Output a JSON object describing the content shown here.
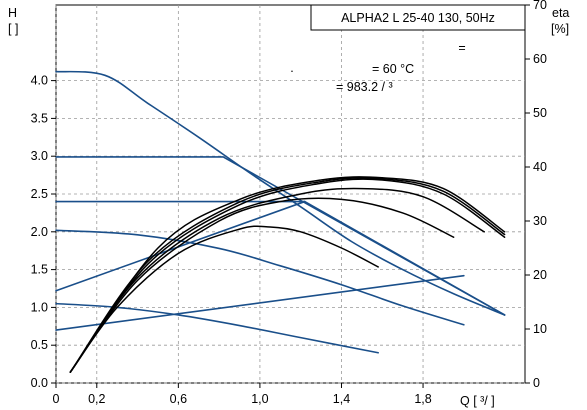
{
  "chart_data": {
    "type": "line",
    "title": "ALPHA2 L 25-40 130, 50Hz",
    "annotations": {
      "line1": "=",
      "line2": ".",
      "line3": "= 60 °C",
      "line4": "= 983.2   / ³"
    },
    "y_left_label": {
      "line1": "H",
      "line2": "[  ]"
    },
    "y_right_label": {
      "line1": "eta",
      "line2": "[%]"
    },
    "x_label": "Q [  ³/  ]",
    "x_ticks": [
      "0",
      "0,2",
      "0,6",
      "1,0",
      "1,4",
      "1,8"
    ],
    "x_tick_values": [
      0,
      0.2,
      0.6,
      1.0,
      1.4,
      1.8
    ],
    "y_left_ticks": [
      "0.0",
      "0.5",
      "1.0",
      "1.5",
      "2.0",
      "2.5",
      "3.0",
      "3.5",
      "4.0"
    ],
    "y_left_tick_values": [
      0,
      0.5,
      1.0,
      1.5,
      2.0,
      2.5,
      3.0,
      3.5,
      4.0
    ],
    "y_right_ticks": [
      "0",
      "10",
      "20",
      "30",
      "40",
      "50",
      "60",
      "70"
    ],
    "y_right_tick_values": [
      0,
      10,
      20,
      30,
      40,
      50,
      60,
      70
    ],
    "xlim": [
      0,
      2.3
    ],
    "ylim_left": [
      0,
      5.0
    ],
    "ylim_right": [
      0,
      70
    ],
    "grid": true,
    "colors": {
      "head": "#1a4f8a",
      "efficiency": "#000000",
      "grid": "#9a9a9a"
    },
    "series": [
      {
        "axis": "left",
        "kind": "head",
        "x": [
          0,
          0.24,
          0.45,
          0.7,
          0.95,
          1.2,
          1.45,
          1.7,
          1.95,
          2.2
        ],
        "y": [
          4.12,
          4.07,
          3.7,
          3.25,
          2.78,
          2.33,
          1.87,
          1.5,
          1.18,
          0.9
        ]
      },
      {
        "axis": "left",
        "kind": "head",
        "x": [
          0,
          0.4,
          0.8,
          1.1,
          1.4,
          1.7,
          2.0
        ],
        "y": [
          2.02,
          1.96,
          1.78,
          1.55,
          1.3,
          1.02,
          0.77
        ]
      },
      {
        "axis": "left",
        "kind": "head",
        "x": [
          0,
          0.3,
          0.6,
          0.9,
          1.2,
          1.58
        ],
        "y": [
          1.05,
          1.0,
          0.9,
          0.76,
          0.6,
          0.4
        ]
      },
      {
        "axis": "left",
        "kind": "head",
        "x": [
          0,
          0.82,
          2.2
        ],
        "y": [
          2.99,
          2.99,
          0.9
        ]
      },
      {
        "axis": "left",
        "kind": "head",
        "x": [
          0,
          1.22,
          2.2
        ],
        "y": [
          2.4,
          2.4,
          0.9
        ]
      },
      {
        "axis": "left",
        "kind": "head",
        "x": [
          0,
          1.22
        ],
        "y": [
          1.22,
          2.4
        ]
      },
      {
        "axis": "left",
        "kind": "head",
        "x": [
          0,
          2.0
        ],
        "y": [
          0.7,
          1.42
        ]
      },
      {
        "axis": "right",
        "kind": "efficiency",
        "x": [
          0.07,
          0.3,
          0.6,
          0.9,
          1.05,
          1.2,
          1.4,
          1.58
        ],
        "y": [
          2,
          14,
          24,
          28.5,
          28.9,
          28,
          25,
          21.5
        ]
      },
      {
        "axis": "right",
        "kind": "efficiency",
        "x": [
          0.07,
          0.4,
          0.8,
          1.1,
          1.4,
          1.7,
          1.95
        ],
        "y": [
          2,
          19,
          30,
          33.6,
          34,
          31.5,
          27
        ]
      },
      {
        "axis": "right",
        "kind": "efficiency",
        "x": [
          0.07,
          0.4,
          0.8,
          1.2,
          1.5,
          1.8,
          2.1
        ],
        "y": [
          2,
          19.5,
          30.5,
          35,
          36,
          34.5,
          28
        ]
      },
      {
        "axis": "right",
        "kind": "efficiency",
        "x": [
          0.07,
          0.45,
          0.9,
          1.3,
          1.6,
          1.9,
          2.2
        ],
        "y": [
          2,
          22,
          33,
          37,
          37.6,
          35,
          27
        ]
      },
      {
        "axis": "right",
        "kind": "efficiency",
        "x": [
          0.07,
          0.45,
          0.9,
          1.3,
          1.6,
          1.9,
          2.2
        ],
        "y": [
          2,
          22.5,
          33.5,
          37.3,
          37.8,
          35.5,
          27.5
        ]
      },
      {
        "axis": "right",
        "kind": "efficiency",
        "x": [
          0.07,
          0.5,
          0.9,
          1.3,
          1.6,
          1.9,
          2.2
        ],
        "y": [
          2,
          25,
          34,
          37.6,
          38,
          36,
          28
        ]
      }
    ]
  }
}
